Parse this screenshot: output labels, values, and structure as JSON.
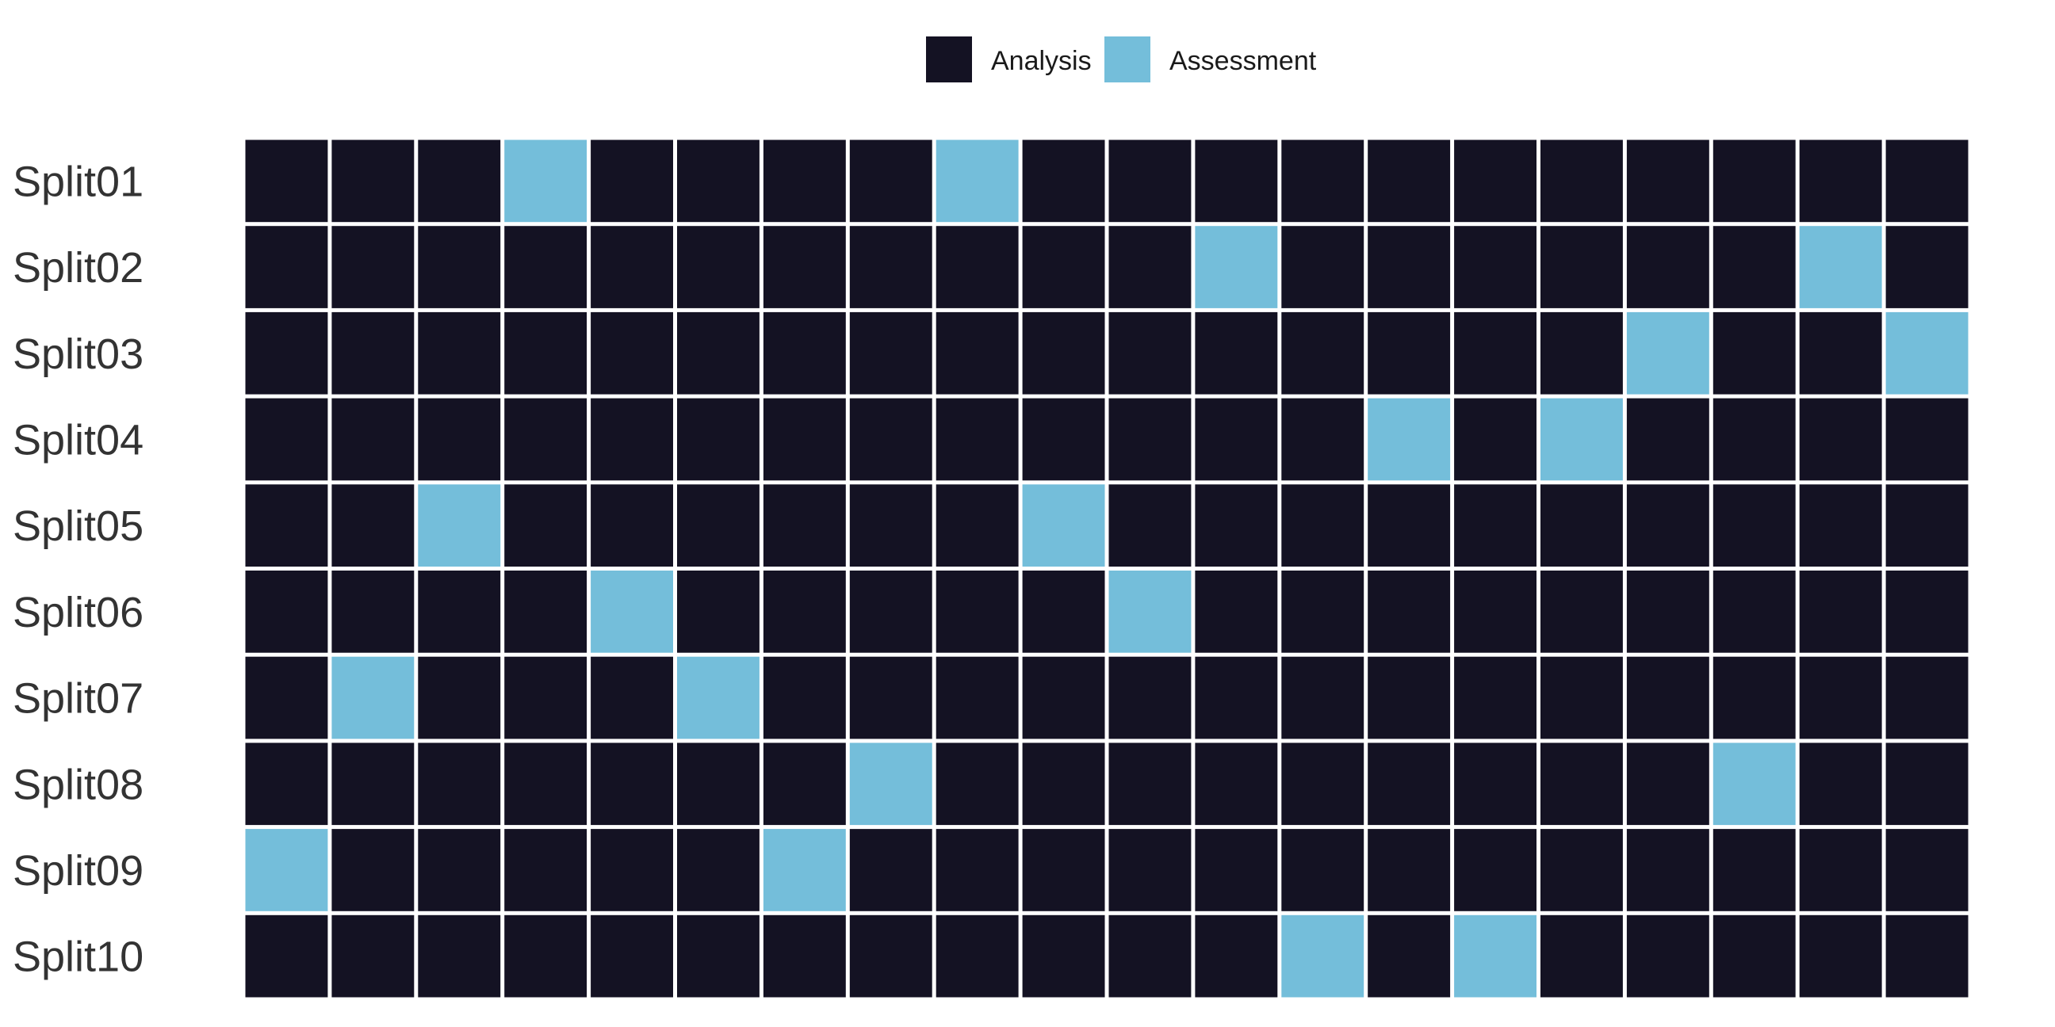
{
  "chart_data": {
    "type": "heatmap",
    "title": "",
    "xlabel": "",
    "ylabel": "",
    "legend": {
      "placement": "top-center",
      "entries": [
        {
          "label": "Analysis",
          "color": "#141223"
        },
        {
          "label": "Assessment",
          "color": "#74BEDA"
        }
      ]
    },
    "categories_per_row": 20,
    "rows": [
      {
        "label": "Split01",
        "assessment_indices": [
          4,
          9
        ]
      },
      {
        "label": "Split02",
        "assessment_indices": [
          12,
          19
        ]
      },
      {
        "label": "Split03",
        "assessment_indices": [
          17,
          20
        ]
      },
      {
        "label": "Split04",
        "assessment_indices": [
          14,
          16
        ]
      },
      {
        "label": "Split05",
        "assessment_indices": [
          3,
          10
        ]
      },
      {
        "label": "Split06",
        "assessment_indices": [
          5,
          11
        ]
      },
      {
        "label": "Split07",
        "assessment_indices": [
          2,
          6
        ]
      },
      {
        "label": "Split08",
        "assessment_indices": [
          8,
          18
        ]
      },
      {
        "label": "Split09",
        "assessment_indices": [
          1,
          7
        ]
      },
      {
        "label": "Split10",
        "assessment_indices": [
          13,
          15
        ]
      }
    ],
    "grid": false
  }
}
